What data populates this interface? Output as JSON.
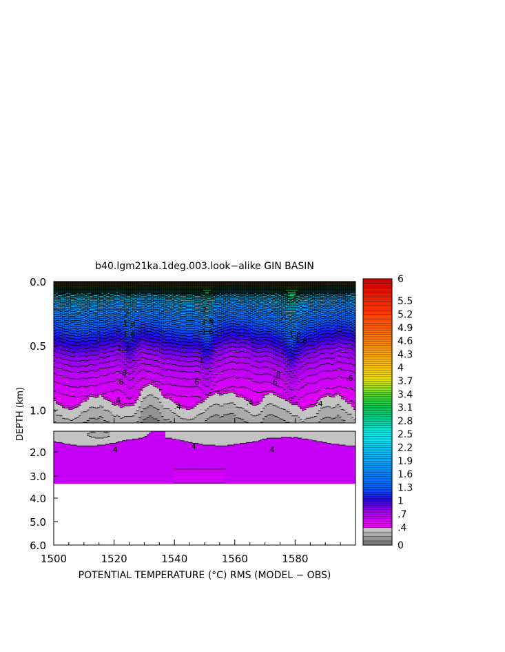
{
  "chart_data": {
    "type": "heatmap",
    "title": "b40.lgm21ka.1deg.003.look−alike GIN BASIN",
    "xlabel": "POTENTIAL TEMPERATURE (°C) RMS (MODEL − OBS)",
    "ylabel": "DEPTH (km)",
    "xlim": [
      1500,
      1600
    ],
    "x_ticks": [
      "1500",
      "1520",
      "1540",
      "1560",
      "1580"
    ],
    "upper_panel": {
      "ylim": [
        0.0,
        1.1
      ],
      "y_ticks": [
        "0.0",
        "0.5",
        "1.0"
      ]
    },
    "lower_panel": {
      "ylim": [
        1.1,
        6.0
      ],
      "y_ticks": [
        "2.0",
        "3.0",
        "4.0",
        "5.0",
        "6.0"
      ],
      "data_bottom_km": 3.35
    },
    "contour_labels": [
      {
        "text": "2",
        "x": 1524,
        "depth": 0.25
      },
      {
        "text": "1.8",
        "x": 1525,
        "depth": 0.33
      },
      {
        "text": "1.6",
        "x": 1525,
        "depth": 0.41
      },
      {
        "text": "1.2",
        "x": 1523,
        "depth": 0.52
      },
      {
        "text": "2",
        "x": 1550,
        "depth": 0.22
      },
      {
        "text": "1.8",
        "x": 1551,
        "depth": 0.31
      },
      {
        "text": "1.6",
        "x": 1551,
        "depth": 0.39
      },
      {
        "text": "1",
        "x": 1549,
        "depth": 0.61
      },
      {
        "text": "2",
        "x": 1576,
        "depth": 0.27
      },
      {
        "text": "1.8",
        "x": 1580,
        "depth": 0.41
      },
      {
        "text": "1.6",
        "x": 1582,
        "depth": 0.46
      },
      {
        "text": ".8",
        "x": 1523,
        "depth": 0.71
      },
      {
        "text": ".6",
        "x": 1522,
        "depth": 0.78
      },
      {
        "text": ".6",
        "x": 1547,
        "depth": 0.78
      },
      {
        "text": ".8",
        "x": 1574,
        "depth": 0.73
      },
      {
        "text": ".6",
        "x": 1573,
        "depth": 0.78
      },
      {
        "text": ".6",
        "x": 1598,
        "depth": 0.75
      },
      {
        "text": ".4",
        "x": 1521,
        "depth": 0.92
      },
      {
        "text": ".4",
        "x": 1541,
        "depth": 0.97
      },
      {
        "text": ".4",
        "x": 1565,
        "depth": 0.94
      },
      {
        "text": ".4",
        "x": 1588,
        "depth": 0.95
      },
      {
        "text": ".4",
        "x": 1520,
        "depth": 1.9
      },
      {
        "text": ".4",
        "x": 1546,
        "depth": 1.75
      },
      {
        "text": ".4",
        "x": 1572,
        "depth": 1.9
      }
    ],
    "colorbar": {
      "min": 0,
      "max": 6,
      "boundaries": [
        0,
        0.1,
        0.2,
        0.3,
        0.4,
        0.45,
        0.5,
        0.55,
        0.6,
        0.65,
        0.7,
        0.75,
        0.8,
        0.85,
        0.9,
        0.95,
        1.0,
        1.05,
        1.1,
        1.15,
        1.2,
        1.25,
        1.3,
        1.35,
        1.4,
        1.45,
        1.5,
        1.55,
        1.6,
        1.65,
        1.7,
        1.75,
        1.8,
        1.85,
        1.9,
        1.95,
        2.0,
        2.05,
        2.1,
        2.15,
        2.2,
        2.25,
        2.3,
        2.35,
        2.4,
        2.45,
        2.5,
        2.55,
        2.6,
        2.65,
        2.7,
        2.75,
        2.8,
        2.85,
        2.9,
        2.95,
        3.0,
        3.05,
        3.1,
        3.15,
        3.2,
        3.25,
        3.3,
        3.35,
        3.4,
        3.45,
        3.5,
        3.55,
        3.6,
        3.65,
        3.7,
        3.75,
        3.8,
        3.85,
        3.9,
        3.95,
        4.0,
        4.05,
        4.1,
        4.15,
        4.2,
        4.25,
        4.3,
        4.35,
        4.4,
        4.45,
        4.5,
        4.55,
        4.6,
        4.65,
        4.7,
        4.75,
        4.8,
        4.85,
        4.9,
        4.95,
        5.0,
        5.1,
        5.2,
        5.3,
        5.4,
        5.5,
        5.6,
        5.7,
        5.8,
        5.9,
        6.0
      ],
      "tick_labels": [
        {
          "value": 6,
          "text": "6"
        },
        {
          "value": 5.5,
          "text": "5.5"
        },
        {
          "value": 5.2,
          "text": "5.2"
        },
        {
          "value": 4.9,
          "text": "4.9"
        },
        {
          "value": 4.6,
          "text": "4.6"
        },
        {
          "value": 4.3,
          "text": "4.3"
        },
        {
          "value": 4.0,
          "text": "4"
        },
        {
          "value": 3.7,
          "text": "3.7"
        },
        {
          "value": 3.4,
          "text": "3.4"
        },
        {
          "value": 3.1,
          "text": "3.1"
        },
        {
          "value": 2.8,
          "text": "2.8"
        },
        {
          "value": 2.5,
          "text": "2.5"
        },
        {
          "value": 2.2,
          "text": "2.2"
        },
        {
          "value": 1.9,
          "text": "1.9"
        },
        {
          "value": 1.6,
          "text": "1.6"
        },
        {
          "value": 1.3,
          "text": "1.3"
        },
        {
          "value": 1.0,
          "text": "1"
        },
        {
          "value": 0.7,
          "text": ".7"
        },
        {
          "value": 0.4,
          "text": ".4"
        },
        {
          "value": 0,
          "text": "0"
        }
      ],
      "color_stops": [
        {
          "value": 0.0,
          "color": "#6e6e6e"
        },
        {
          "value": 0.4,
          "color": "#cfcfcf"
        },
        {
          "value": 0.4,
          "color": "#ff00ff"
        },
        {
          "value": 0.8,
          "color": "#9a00f0"
        },
        {
          "value": 1.0,
          "color": "#2a00e0"
        },
        {
          "value": 1.3,
          "color": "#0060ff"
        },
        {
          "value": 1.9,
          "color": "#00a8ff"
        },
        {
          "value": 2.5,
          "color": "#00f2f2"
        },
        {
          "value": 2.8,
          "color": "#00d2a0"
        },
        {
          "value": 3.1,
          "color": "#00c850"
        },
        {
          "value": 3.4,
          "color": "#50d828"
        },
        {
          "value": 3.7,
          "color": "#e6e600"
        },
        {
          "value": 4.0,
          "color": "#ffc800"
        },
        {
          "value": 4.6,
          "color": "#ff8200"
        },
        {
          "value": 5.2,
          "color": "#ff3c00"
        },
        {
          "value": 6.0,
          "color": "#cc0000"
        }
      ]
    }
  }
}
